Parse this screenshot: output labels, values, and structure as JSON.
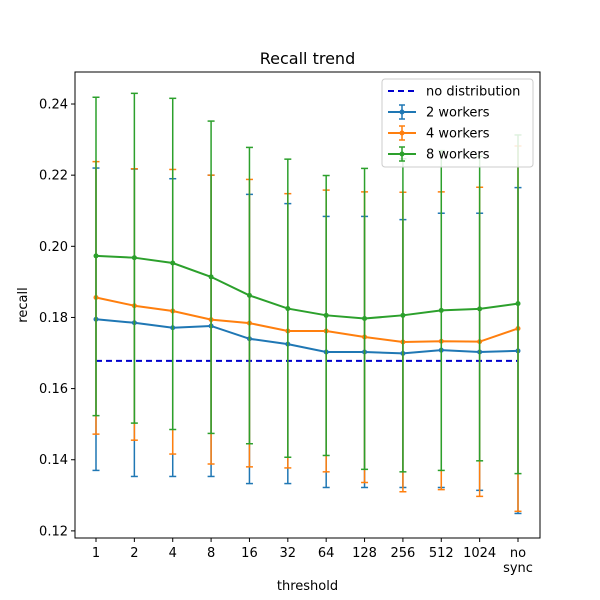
{
  "chart_data": {
    "type": "line",
    "title": "Recall trend",
    "xlabel": "threshold",
    "ylabel": "recall",
    "categories": [
      "1",
      "2",
      "4",
      "8",
      "16",
      "32",
      "64",
      "128",
      "256",
      "512",
      "1024",
      "no\nsync"
    ],
    "ylim": [
      0.118,
      0.249
    ],
    "yticks": [
      0.12,
      0.14,
      0.16,
      0.18,
      0.2,
      0.22,
      0.24
    ],
    "grid": false,
    "legend_position": "top-right",
    "baseline": {
      "name": "no distribution",
      "value": 0.1678,
      "color": "#0000cc",
      "style": "dashed"
    },
    "series": [
      {
        "name": "2 workers",
        "color": "#1f77b4",
        "values": [
          0.1795,
          0.1785,
          0.1771,
          0.1776,
          0.174,
          0.1725,
          0.1703,
          0.1703,
          0.1699,
          0.1708,
          0.1703,
          0.1706
        ],
        "err_low": [
          0.137,
          0.1353,
          0.1353,
          0.1353,
          0.1333,
          0.1333,
          0.1322,
          0.1322,
          0.1322,
          0.1322,
          0.1314,
          0.1249
        ],
        "err_high": [
          0.222,
          0.2217,
          0.219,
          0.22,
          0.2146,
          0.212,
          0.2084,
          0.2084,
          0.2075,
          0.2093,
          0.2093,
          0.2165
        ]
      },
      {
        "name": "4 workers",
        "color": "#ff7f0e",
        "values": [
          0.1856,
          0.1833,
          0.1818,
          0.1794,
          0.1784,
          0.1762,
          0.1762,
          0.1745,
          0.1731,
          0.1733,
          0.1732,
          0.1769
        ],
        "err_low": [
          0.1472,
          0.1455,
          0.1416,
          0.1388,
          0.138,
          0.1377,
          0.1366,
          0.1336,
          0.131,
          0.1316,
          0.1297,
          0.1255
        ],
        "err_high": [
          0.2238,
          0.2218,
          0.2216,
          0.22,
          0.2188,
          0.2148,
          0.2158,
          0.2153,
          0.2152,
          0.2153,
          0.2166,
          0.2282
        ]
      },
      {
        "name": "8 workers",
        "color": "#2ca02c",
        "values": [
          0.1973,
          0.1968,
          0.1953,
          0.1914,
          0.1862,
          0.1825,
          0.1806,
          0.1797,
          0.1806,
          0.182,
          0.1824,
          0.1839
        ],
        "err_low": [
          0.1524,
          0.1503,
          0.1485,
          0.1474,
          0.1445,
          0.1407,
          0.1412,
          0.1373,
          0.1366,
          0.137,
          0.1397,
          0.1361
        ],
        "err_high": [
          0.2419,
          0.243,
          0.2416,
          0.2352,
          0.2278,
          0.2245,
          0.2199,
          0.2219,
          0.2246,
          0.2269,
          0.2253,
          0.2313
        ]
      }
    ]
  }
}
